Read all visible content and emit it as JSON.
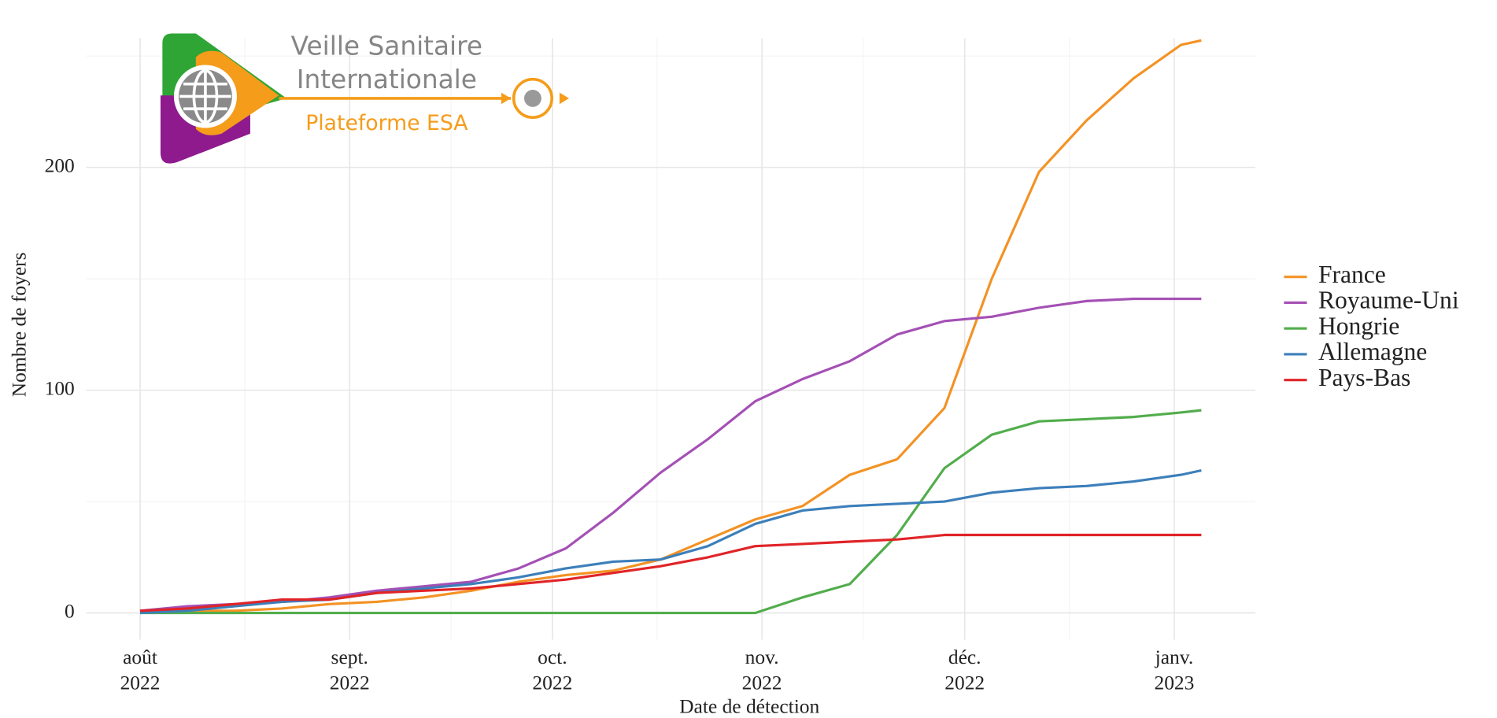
{
  "logo": {
    "line1": "Veille Sanitaire",
    "line2": "Internationale",
    "line3": "Plateforme ESA"
  },
  "chart_data": {
    "type": "line",
    "xlabel": "Date de détection",
    "ylabel": "Nombre de foyers",
    "x": [
      "2022-08-01",
      "2022-08-08",
      "2022-08-15",
      "2022-08-22",
      "2022-08-29",
      "2022-09-05",
      "2022-09-12",
      "2022-09-19",
      "2022-09-26",
      "2022-10-03",
      "2022-10-10",
      "2022-10-17",
      "2022-10-24",
      "2022-10-31",
      "2022-11-07",
      "2022-11-14",
      "2022-11-21",
      "2022-11-28",
      "2022-12-05",
      "2022-12-12",
      "2022-12-19",
      "2022-12-26",
      "2023-01-02",
      "2023-01-05"
    ],
    "series": [
      {
        "name": "France",
        "color": "#f39224",
        "values": [
          1,
          1,
          1,
          2,
          4,
          5,
          7,
          10,
          14,
          17,
          19,
          24,
          33,
          42,
          48,
          62,
          69,
          92,
          150,
          198,
          221,
          240,
          255,
          257
        ]
      },
      {
        "name": "Royaume-Uni",
        "color": "#a450b5",
        "values": [
          1,
          3,
          4,
          5,
          7,
          10,
          12,
          14,
          20,
          29,
          45,
          63,
          78,
          95,
          105,
          113,
          125,
          131,
          133,
          137,
          140,
          141,
          141,
          141
        ]
      },
      {
        "name": "Hongrie",
        "color": "#52ad4c",
        "values": [
          0,
          0,
          0,
          0,
          0,
          0,
          0,
          0,
          0,
          0,
          0,
          0,
          0,
          0,
          7,
          13,
          35,
          65,
          80,
          86,
          87,
          88,
          90,
          91
        ]
      },
      {
        "name": "Allemagne",
        "color": "#3c7fba",
        "values": [
          0,
          1,
          3,
          5,
          6,
          9,
          11,
          13,
          16,
          20,
          23,
          24,
          30,
          40,
          46,
          48,
          49,
          50,
          54,
          56,
          57,
          59,
          62,
          64
        ]
      },
      {
        "name": "Pays-Bas",
        "color": "#e02428",
        "values": [
          1,
          2,
          4,
          6,
          6,
          9,
          10,
          11,
          13,
          15,
          18,
          21,
          25,
          30,
          31,
          32,
          33,
          35,
          35,
          35,
          35,
          35,
          35,
          35
        ]
      }
    ],
    "xlim": [
      "2022-07-24",
      "2023-01-13"
    ],
    "xticks": [
      {
        "value": "2022-08-01",
        "label": "août 2022"
      },
      {
        "value": "2022-09-01",
        "label": "sept. 2022"
      },
      {
        "value": "2022-10-01",
        "label": "oct. 2022"
      },
      {
        "value": "2022-11-01",
        "label": "nov. 2022"
      },
      {
        "value": "2022-12-01",
        "label": "déc. 2022"
      },
      {
        "value": "2023-01-01",
        "label": "janv. 2023"
      }
    ],
    "ylim": [
      -12,
      258
    ],
    "yticks": [
      0,
      100,
      200
    ],
    "grid": true,
    "legend": "right"
  }
}
